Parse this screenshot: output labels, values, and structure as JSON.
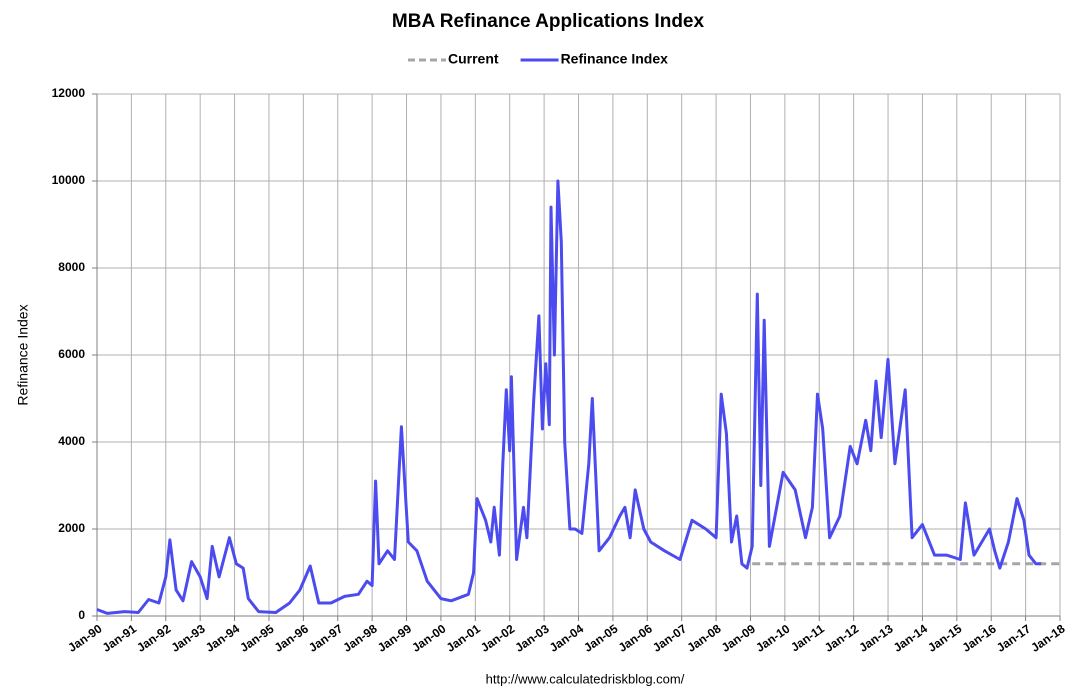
{
  "chart_data": {
    "type": "line",
    "title": "MBA Refinance Applications Index",
    "y_label": "Refinance Index",
    "source": "http://www.calculatedriskblog.com/",
    "grid": true,
    "legend": "top",
    "ylim": [
      0,
      12000
    ],
    "yticks": [
      0,
      2000,
      4000,
      6000,
      8000,
      10000,
      12000
    ],
    "xlim": [
      1990,
      2018
    ],
    "xticks": [
      {
        "value": 1990,
        "label": "Jan-90"
      },
      {
        "value": 1991,
        "label": "Jan-91"
      },
      {
        "value": 1992,
        "label": "Jan-92"
      },
      {
        "value": 1993,
        "label": "Jan-93"
      },
      {
        "value": 1994,
        "label": "Jan-94"
      },
      {
        "value": 1995,
        "label": "Jan-95"
      },
      {
        "value": 1996,
        "label": "Jan-96"
      },
      {
        "value": 1997,
        "label": "Jan-97"
      },
      {
        "value": 1998,
        "label": "Jan-98"
      },
      {
        "value": 1999,
        "label": "Jan-99"
      },
      {
        "value": 2000,
        "label": "Jan-00"
      },
      {
        "value": 2001,
        "label": "Jan-01"
      },
      {
        "value": 2002,
        "label": "Jan-02"
      },
      {
        "value": 2003,
        "label": "Jan-03"
      },
      {
        "value": 2004,
        "label": "Jan-04"
      },
      {
        "value": 2005,
        "label": "Jan-05"
      },
      {
        "value": 2006,
        "label": "Jan-06"
      },
      {
        "value": 2007,
        "label": "Jan-07"
      },
      {
        "value": 2008,
        "label": "Jan-08"
      },
      {
        "value": 2009,
        "label": "Jan-09"
      },
      {
        "value": 2010,
        "label": "Jan-10"
      },
      {
        "value": 2011,
        "label": "Jan-11"
      },
      {
        "value": 2012,
        "label": "Jan-12"
      },
      {
        "value": 2013,
        "label": "Jan-13"
      },
      {
        "value": 2014,
        "label": "Jan-14"
      },
      {
        "value": 2015,
        "label": "Jan-15"
      },
      {
        "value": 2016,
        "label": "Jan-16"
      },
      {
        "value": 2017,
        "label": "Jan-17"
      },
      {
        "value": 2018,
        "label": "Jan-18"
      }
    ],
    "series": [
      {
        "name": "Current",
        "color": "#a6a6a6",
        "dashed": true,
        "x": [
          2009.05,
          2018
        ],
        "values": [
          1200,
          1200
        ]
      },
      {
        "name": "Refinance Index",
        "color": "#4b4bf0",
        "dashed": false,
        "x": [
          1990.0,
          1990.3,
          1990.8,
          1991.2,
          1991.5,
          1991.8,
          1992.0,
          1992.12,
          1992.3,
          1992.5,
          1992.75,
          1993.0,
          1993.2,
          1993.35,
          1993.55,
          1993.85,
          1994.05,
          1994.25,
          1994.4,
          1994.7,
          1995.2,
          1995.6,
          1995.9,
          1996.2,
          1996.45,
          1996.8,
          1997.2,
          1997.6,
          1997.85,
          1998.0,
          1998.1,
          1998.2,
          1998.45,
          1998.65,
          1998.85,
          1999.05,
          1999.3,
          1999.6,
          2000.0,
          2000.3,
          2000.8,
          2000.95,
          2001.05,
          2001.3,
          2001.45,
          2001.55,
          2001.7,
          2001.8,
          2001.9,
          2002.0,
          2002.05,
          2002.2,
          2002.4,
          2002.5,
          2002.7,
          2002.85,
          2002.95,
          2003.05,
          2003.15,
          2003.2,
          2003.3,
          2003.4,
          2003.5,
          2003.6,
          2003.75,
          2003.9,
          2004.1,
          2004.3,
          2004.4,
          2004.6,
          2004.9,
          2005.2,
          2005.35,
          2005.5,
          2005.65,
          2005.9,
          2006.1,
          2006.5,
          2006.95,
          2007.3,
          2007.7,
          2008.0,
          2008.15,
          2008.3,
          2008.45,
          2008.6,
          2008.75,
          2008.9,
          2009.05,
          2009.2,
          2009.3,
          2009.4,
          2009.55,
          2009.95,
          2010.3,
          2010.6,
          2010.8,
          2010.95,
          2011.1,
          2011.3,
          2011.6,
          2011.9,
          2012.1,
          2012.35,
          2012.5,
          2012.65,
          2012.8,
          2013.0,
          2013.2,
          2013.5,
          2013.7,
          2014.0,
          2014.35,
          2014.7,
          2015.1,
          2015.25,
          2015.5,
          2015.95,
          2016.1,
          2016.25,
          2016.5,
          2016.75,
          2016.95,
          2017.1,
          2017.3,
          2017.45
        ],
        "values": [
          150,
          60,
          100,
          80,
          380,
          300,
          900,
          1750,
          600,
          350,
          1250,
          900,
          400,
          1600,
          900,
          1800,
          1200,
          1100,
          400,
          100,
          80,
          300,
          600,
          1150,
          300,
          300,
          450,
          500,
          800,
          700,
          3100,
          1200,
          1500,
          1300,
          4350,
          1700,
          1500,
          800,
          400,
          350,
          500,
          1000,
          2700,
          2200,
          1700,
          2500,
          1400,
          3500,
          5200,
          3800,
          5500,
          1300,
          2500,
          1800,
          5000,
          6900,
          4300,
          5800,
          4400,
          9400,
          6000,
          10000,
          8600,
          4000,
          2000,
          2000,
          1900,
          3500,
          5000,
          1500,
          1800,
          2300,
          2500,
          1800,
          2900,
          2000,
          1700,
          1500,
          1300,
          2200,
          2000,
          1800,
          5100,
          4200,
          1700,
          2300,
          1200,
          1100,
          1600,
          7400,
          3000,
          6800,
          1600,
          3300,
          2900,
          1800,
          2500,
          5100,
          4300,
          1800,
          2300,
          3900,
          3500,
          4500,
          3800,
          5400,
          4100,
          5900,
          3500,
          5200,
          1800,
          2100,
          1400,
          1400,
          1300,
          2600,
          1400,
          2000,
          1500,
          1100,
          1700,
          2700,
          2200,
          1400,
          1200,
          1200
        ]
      }
    ]
  }
}
